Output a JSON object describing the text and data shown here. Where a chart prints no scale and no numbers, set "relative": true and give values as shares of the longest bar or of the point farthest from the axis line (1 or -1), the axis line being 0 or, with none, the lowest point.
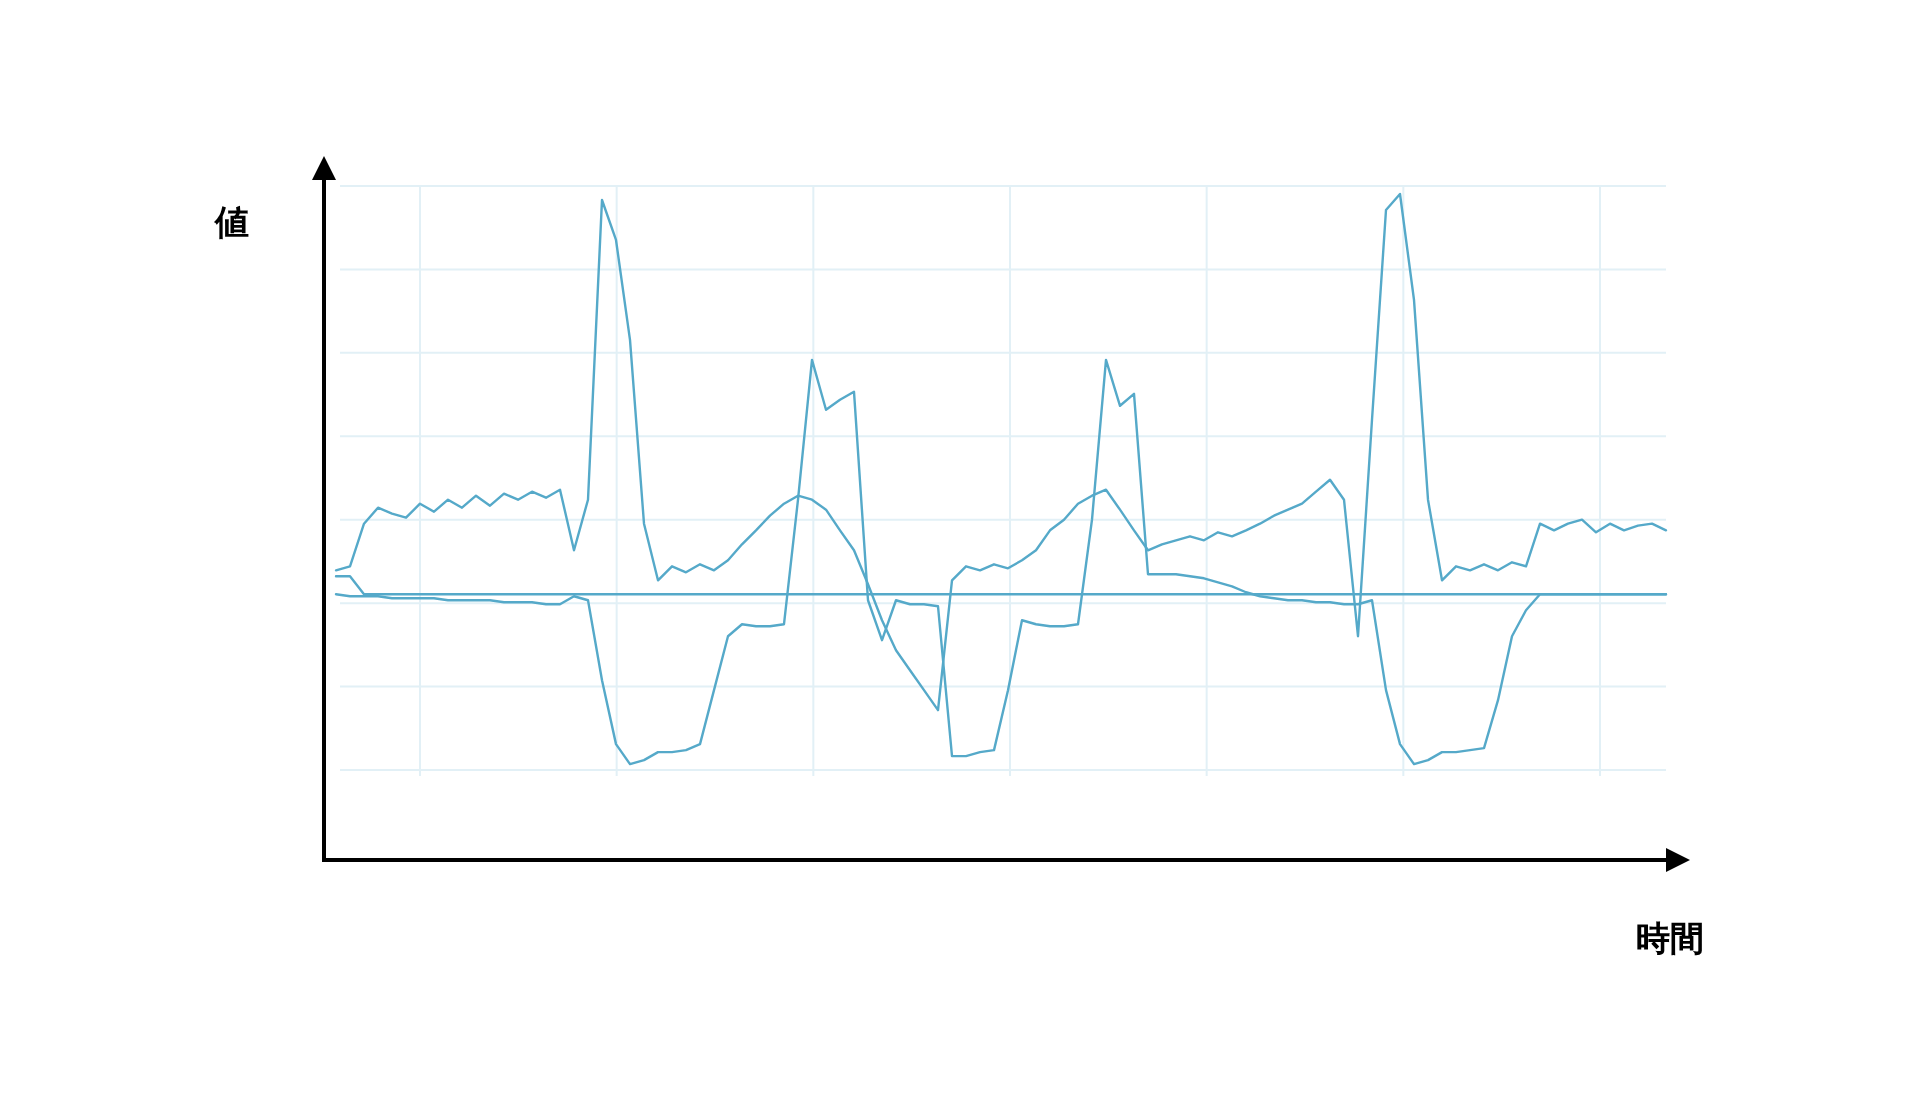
{
  "chart_data": {
    "type": "line",
    "relative": true,
    "xlabel": "時間",
    "ylabel": "値",
    "grid": true,
    "categories": [
      null,
      null,
      null,
      null,
      null,
      null,
      null,
      null,
      null,
      null,
      null,
      null,
      null,
      null,
      null,
      null,
      null,
      null,
      null,
      null,
      null,
      null,
      null,
      null,
      null,
      null,
      null,
      null,
      null,
      null,
      null,
      null,
      null,
      null,
      null,
      null,
      null,
      null,
      null,
      null,
      null,
      null,
      null,
      null,
      null,
      null,
      null,
      null,
      null,
      null,
      null,
      null,
      null,
      null,
      null,
      null,
      null,
      null,
      null,
      null,
      null,
      null,
      null,
      null,
      null,
      null,
      null,
      null,
      null,
      null,
      null,
      null,
      null,
      null,
      null,
      null,
      null,
      null,
      null,
      null,
      null,
      null,
      null,
      null,
      null,
      null,
      null,
      null,
      null,
      null,
      null,
      null,
      null,
      null,
      null,
      null
    ],
    "series": [
      {
        "color": "#55a9c9",
        "values": [
          0.435,
          0.441,
          0.505,
          0.529,
          0.52,
          0.514,
          0.535,
          0.523,
          0.541,
          0.529,
          0.547,
          0.532,
          0.55,
          0.541,
          0.553,
          0.544,
          0.556,
          0.465,
          0.541,
          0.991,
          0.931,
          0.781,
          0.505,
          0.42,
          0.441,
          0.432,
          0.444,
          0.435,
          0.45,
          0.474,
          0.495,
          0.517,
          0.535,
          0.547,
          0.541,
          0.526,
          0.495,
          0.465,
          0.414,
          0.36,
          0.315,
          0.285,
          0.255,
          0.225,
          0.42,
          0.441,
          0.435,
          0.444,
          0.438,
          0.45,
          0.465,
          0.495,
          0.511,
          0.535,
          0.547,
          0.556,
          0.526,
          0.495,
          0.465,
          0.474,
          0.48,
          0.486,
          0.48,
          0.492,
          0.486,
          0.495,
          0.505,
          0.517,
          0.526,
          0.535,
          0.553,
          0.571,
          0.541,
          0.336,
          0.661,
          0.976,
          1.0,
          0.841,
          0.541,
          0.42,
          0.441,
          0.435,
          0.444,
          0.435,
          0.447,
          0.441,
          0.505,
          0.495,
          0.505,
          0.511,
          0.492,
          0.505,
          0.495,
          0.502,
          0.505,
          0.495
        ]
      },
      {
        "color": "#55a9c9",
        "values": [
          0.399,
          0.396,
          0.396,
          0.396,
          0.393,
          0.393,
          0.393,
          0.393,
          0.39,
          0.39,
          0.39,
          0.39,
          0.387,
          0.387,
          0.387,
          0.384,
          0.384,
          0.396,
          0.39,
          0.27,
          0.174,
          0.144,
          0.15,
          0.162,
          0.162,
          0.165,
          0.174,
          0.255,
          0.336,
          0.354,
          0.351,
          0.351,
          0.354,
          0.541,
          0.751,
          0.676,
          0.691,
          0.703,
          0.39,
          0.33,
          0.39,
          0.384,
          0.384,
          0.381,
          0.156,
          0.156,
          0.162,
          0.165,
          0.255,
          0.36,
          0.354,
          0.351,
          0.351,
          0.354,
          0.511,
          0.751,
          0.682,
          0.7,
          0.429,
          0.429,
          0.429,
          0.426,
          0.423,
          0.417,
          0.411,
          0.402,
          0.396,
          0.393,
          0.39,
          0.39,
          0.387,
          0.387,
          0.384,
          0.384,
          0.39,
          0.255,
          0.174,
          0.144,
          0.15,
          0.162,
          0.162,
          0.165,
          0.168,
          0.24,
          0.336,
          0.375,
          0.399,
          0.399,
          0.399,
          0.399,
          0.399,
          0.399,
          0.399,
          0.399,
          0.399,
          0.399
        ]
      },
      {
        "color": "#55a9c9",
        "values": [
          0.426,
          0.426,
          0.399,
          0.399,
          0.399,
          0.399,
          0.399,
          0.399,
          0.399,
          0.399,
          0.399,
          0.399,
          0.399,
          0.399,
          0.399,
          0.399,
          0.399,
          0.399,
          0.399,
          0.399,
          0.399,
          0.399,
          0.399,
          0.399,
          0.399,
          0.399,
          0.399,
          0.399,
          0.399,
          0.399,
          0.399,
          0.399,
          0.399,
          0.399,
          0.399,
          0.399,
          0.399,
          0.399,
          0.399,
          0.399,
          0.399,
          0.399,
          0.399,
          0.399,
          0.399,
          0.399,
          0.399,
          0.399,
          0.399,
          0.399,
          0.399,
          0.399,
          0.399,
          0.399,
          0.399,
          0.399,
          0.399,
          0.399,
          0.399,
          0.399,
          0.399,
          0.399,
          0.399,
          0.399,
          0.399,
          0.399,
          0.399,
          0.399,
          0.399,
          0.399,
          0.399,
          0.399,
          0.399,
          0.399,
          0.399,
          0.399,
          0.399,
          0.399,
          0.399,
          0.399,
          0.399,
          0.399,
          0.399,
          0.399,
          0.399,
          0.399,
          0.399,
          0.399,
          0.399,
          0.399,
          0.399,
          0.399,
          0.399,
          0.399,
          0.399,
          0.399
        ]
      }
    ]
  }
}
